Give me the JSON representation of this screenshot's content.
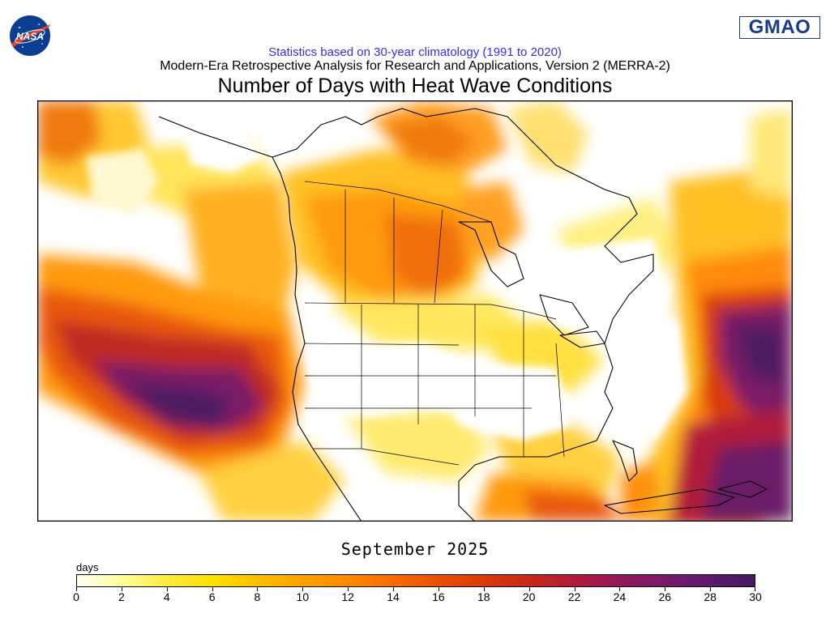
{
  "header": {
    "stats_line": "Statistics based on 30-year climatology (1991 to 2020)",
    "subtitle": "Modern-Era Retrospective Analysis for Research and Applications, Version 2 (MERRA-2)",
    "title": "Number of Days with Heat Wave Conditions"
  },
  "logos": {
    "nasa": "NASA",
    "gmao": "GMAO"
  },
  "map": {
    "region": "North America and adjacent oceans",
    "date_label": "September 2025"
  },
  "colorbar": {
    "units": "days",
    "min": 0,
    "max": 30,
    "ticks": [
      "0",
      "2",
      "4",
      "6",
      "8",
      "10",
      "12",
      "14",
      "16",
      "18",
      "20",
      "22",
      "24",
      "26",
      "28",
      "30"
    ],
    "colors": [
      "#fffff5",
      "#ffff9a",
      "#ffeb40",
      "#ffe000",
      "#ffc000",
      "#ffa200",
      "#ff8a00",
      "#f86c00",
      "#e85000",
      "#d83a08",
      "#c82818",
      "#b01c3a",
      "#92185a",
      "#781a6a",
      "#5c1a6e",
      "#451a5e"
    ]
  }
}
